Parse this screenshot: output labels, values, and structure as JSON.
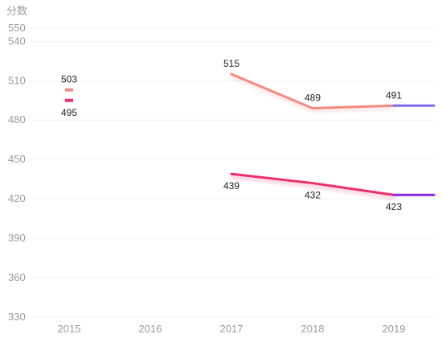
{
  "chart_data": {
    "type": "line",
    "ylabel": "分数",
    "categories": [
      "2015",
      "2016",
      "2017",
      "2018",
      "2019"
    ],
    "y_ticks": [
      330,
      360,
      390,
      420,
      450,
      480,
      510,
      540,
      550
    ],
    "ylim": [
      330,
      550
    ],
    "grid": true,
    "series": [
      {
        "values": [
          503,
          null,
          515,
          489,
          491
        ],
        "labels": [
          "503",
          "",
          "515",
          "489",
          "491"
        ],
        "color": "#f48a80",
        "tail_color": "#7b6cf0",
        "label_position": "above"
      },
      {
        "values": [
          495,
          null,
          439,
          432,
          423
        ],
        "labels": [
          "495",
          "",
          "439",
          "432",
          "423"
        ],
        "color": "#ee2f6a",
        "tail_color": "#8a2be2",
        "label_position": "below"
      }
    ]
  }
}
